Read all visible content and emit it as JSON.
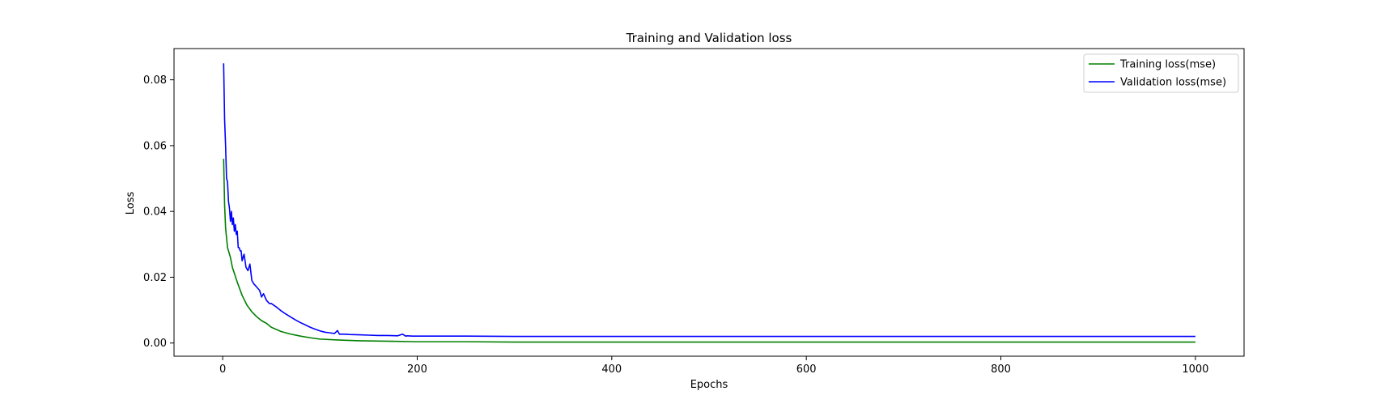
{
  "chart_data": {
    "type": "line",
    "title": "Training and Validation loss",
    "xlabel": "Epochs",
    "ylabel": "Loss",
    "xlim": [
      -50,
      1050
    ],
    "ylim": [
      -0.004,
      0.0895
    ],
    "xticks": [
      0,
      200,
      400,
      600,
      800,
      1000
    ],
    "xtick_labels": [
      "0",
      "200",
      "400",
      "600",
      "800",
      "1000"
    ],
    "yticks": [
      0.0,
      0.02,
      0.04,
      0.06,
      0.08
    ],
    "ytick_labels": [
      "0.00",
      "0.02",
      "0.04",
      "0.06",
      "0.08"
    ],
    "grid": false,
    "legend_position": "top-right",
    "series": [
      {
        "name": "Training loss(mse)",
        "color": "#008000",
        "x": [
          1,
          2,
          3,
          5,
          8,
          10,
          15,
          20,
          25,
          30,
          35,
          40,
          45,
          50,
          60,
          70,
          80,
          90,
          100,
          120,
          140,
          160,
          180,
          200,
          250,
          300,
          400,
          500,
          600,
          700,
          800,
          900,
          1000
        ],
        "y": [
          0.056,
          0.042,
          0.035,
          0.029,
          0.026,
          0.023,
          0.0185,
          0.0145,
          0.0115,
          0.0095,
          0.008,
          0.0068,
          0.006,
          0.0048,
          0.0035,
          0.0027,
          0.0021,
          0.0016,
          0.0012,
          0.0009,
          0.0007,
          0.0006,
          0.0005,
          0.0004,
          0.0004,
          0.0003,
          0.0003,
          0.0003,
          0.0003,
          0.0003,
          0.0003,
          0.0003,
          0.0003
        ]
      },
      {
        "name": "Validation loss(mse)",
        "color": "#0000ff",
        "x": [
          1,
          2,
          3,
          4,
          5,
          6,
          7,
          8,
          9,
          10,
          11,
          12,
          13,
          14,
          15,
          16,
          17,
          18,
          19,
          20,
          22,
          24,
          26,
          28,
          30,
          32,
          35,
          38,
          40,
          42,
          45,
          48,
          50,
          55,
          60,
          65,
          70,
          75,
          80,
          85,
          90,
          95,
          100,
          105,
          110,
          115,
          118,
          120,
          125,
          130,
          140,
          150,
          160,
          170,
          180,
          185,
          188,
          190,
          195,
          200,
          250,
          300,
          400,
          500,
          600,
          700,
          800,
          900,
          1000
        ],
        "y": [
          0.085,
          0.068,
          0.06,
          0.05,
          0.049,
          0.043,
          0.041,
          0.037,
          0.04,
          0.036,
          0.038,
          0.034,
          0.036,
          0.033,
          0.034,
          0.029,
          0.029,
          0.028,
          0.028,
          0.025,
          0.027,
          0.023,
          0.022,
          0.024,
          0.019,
          0.018,
          0.017,
          0.016,
          0.014,
          0.015,
          0.013,
          0.012,
          0.012,
          0.011,
          0.0098,
          0.0088,
          0.0079,
          0.007,
          0.0062,
          0.0055,
          0.0048,
          0.0042,
          0.0037,
          0.0033,
          0.0031,
          0.0029,
          0.0038,
          0.0027,
          0.0027,
          0.0026,
          0.0025,
          0.0024,
          0.0023,
          0.0023,
          0.0022,
          0.0027,
          0.0021,
          0.0022,
          0.0021,
          0.0021,
          0.0021,
          0.002,
          0.002,
          0.002,
          0.002,
          0.002,
          0.002,
          0.002,
          0.002
        ]
      }
    ]
  }
}
